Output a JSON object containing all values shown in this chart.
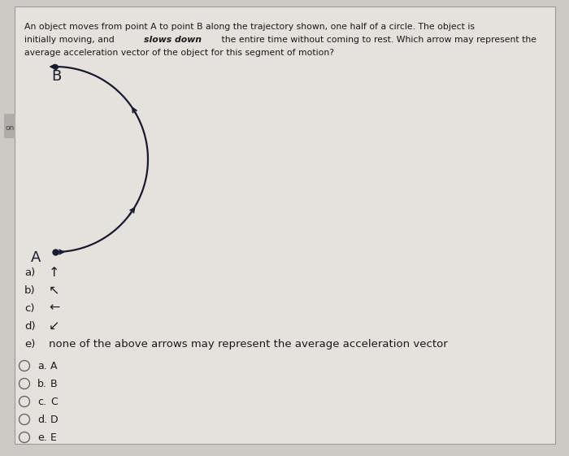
{
  "bg_color": "#cdc9c5",
  "box_bg": "#e5e1dd",
  "title_line1": "An object moves from point A to point B along the trajectory shown, one half of a circle. The object is",
  "title_line2_p1": "initially moving, and ",
  "title_line2_bold": "slows down",
  "title_line2_p3": " the entire time without coming to rest. Which arrow may represent the",
  "title_line3": "average acceleration vector of the object for this segment of motion?",
  "question_options": [
    {
      "label": "a)",
      "arrow_char": "↑"
    },
    {
      "label": "b)",
      "arrow_char": "↖"
    },
    {
      "label": "c)",
      "arrow_char": "←"
    },
    {
      "label": "d)",
      "arrow_char": "↙"
    },
    {
      "label": "e)",
      "text": "none of the above arrows may represent the average acceleration vector"
    }
  ],
  "radio_options": [
    {
      "label": "a.",
      "text": "A"
    },
    {
      "label": "b.",
      "text": "B"
    },
    {
      "label": "c.",
      "text": "C"
    },
    {
      "label": "d.",
      "text": "D"
    },
    {
      "label": "e.",
      "text": "E"
    }
  ],
  "point_A_label": "A",
  "point_B_label": "B",
  "left_tab_text": "on",
  "font_size_title": 7.8,
  "line_color": "#1a1a2e",
  "text_color": "#1a1a1a",
  "tab_color": "#b0aca8"
}
